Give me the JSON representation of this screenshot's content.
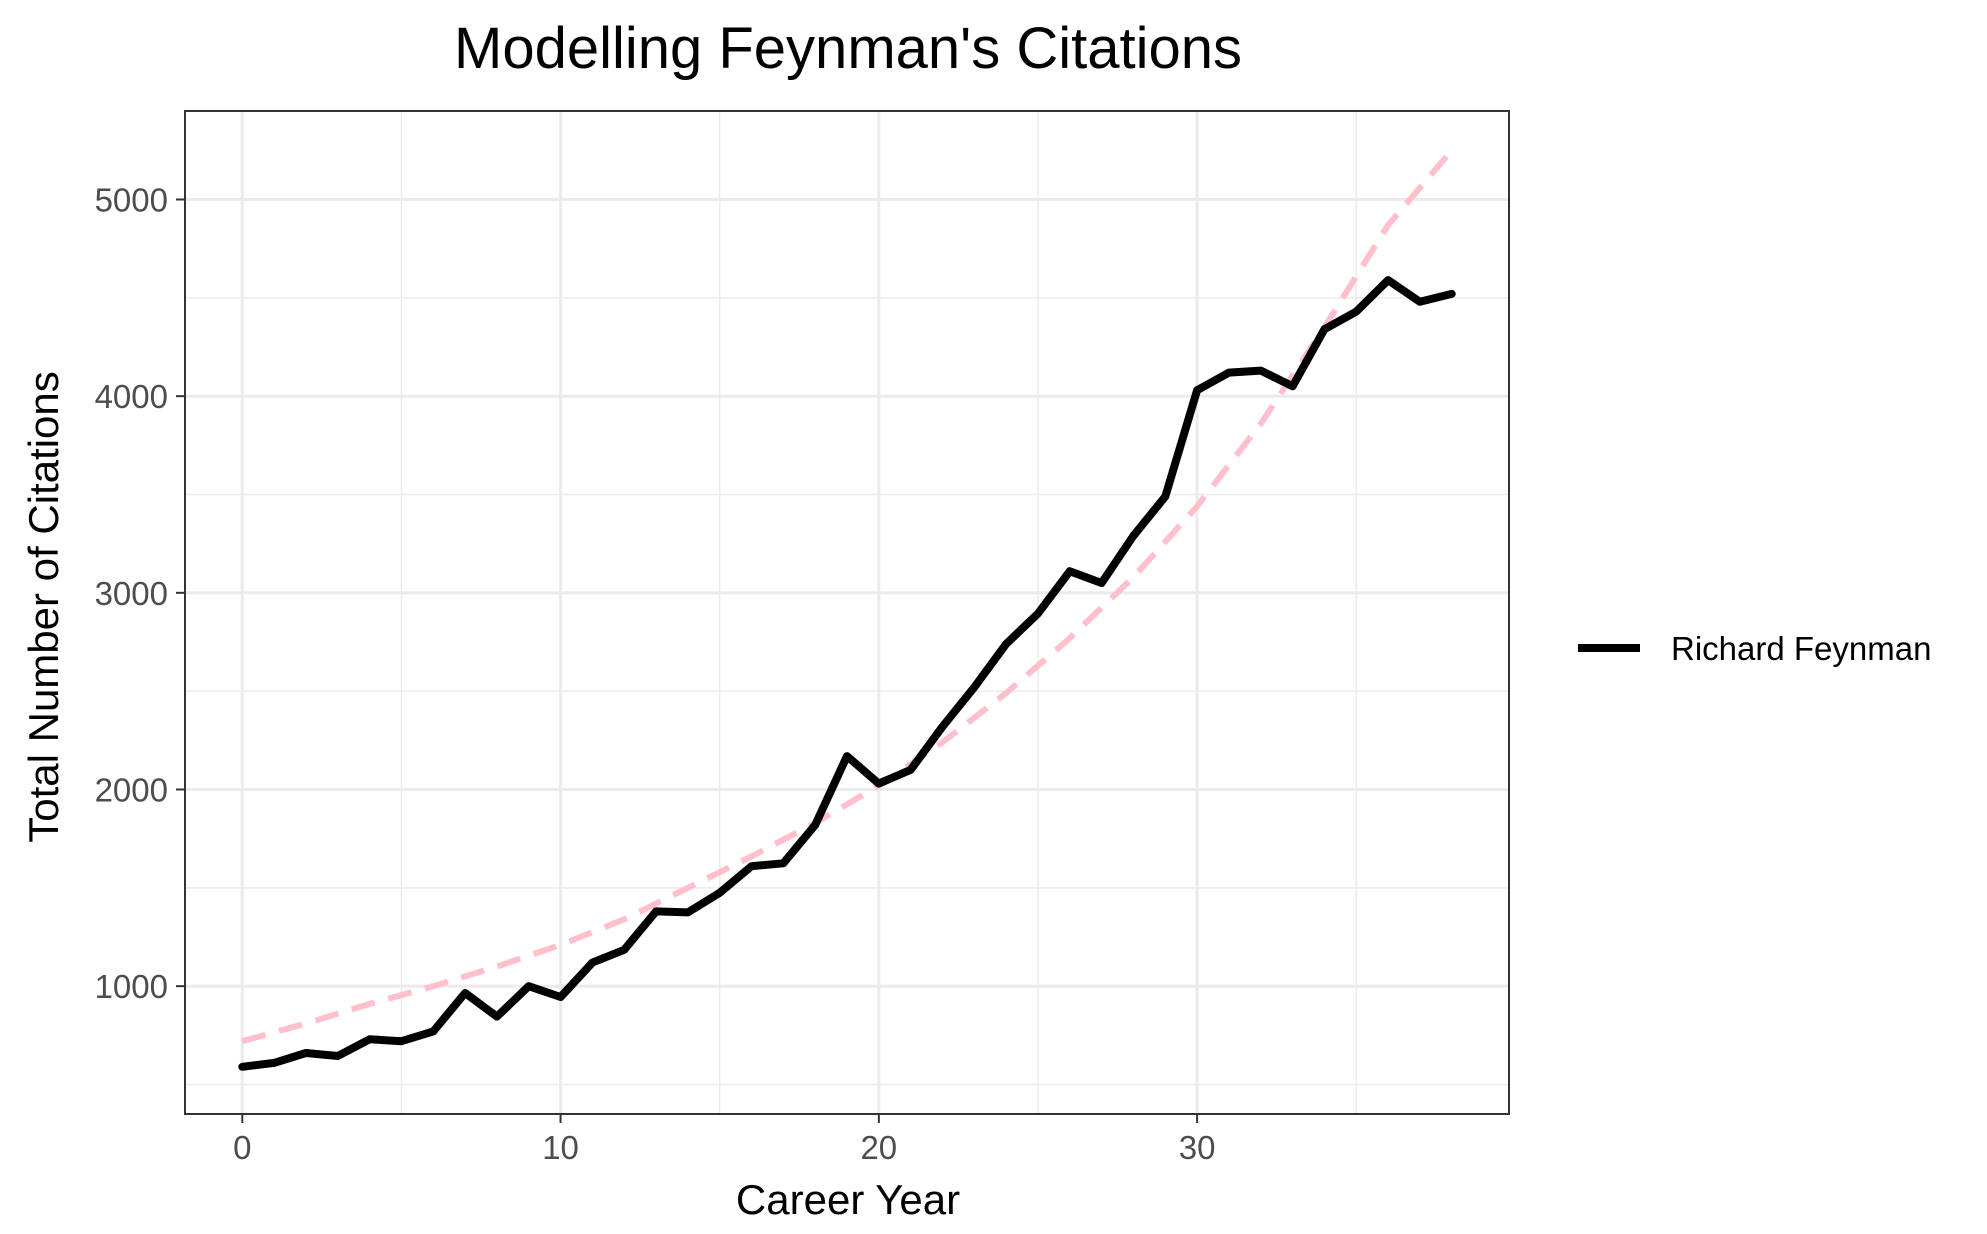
{
  "chart_data": {
    "type": "line",
    "title": "Modelling Feynman's Citations",
    "xlabel": "Career Year",
    "ylabel": "Total Number of Citations",
    "xlim": [
      -1.8,
      39.8
    ],
    "ylim": [
      350,
      5450
    ],
    "x_ticks": [
      0,
      10,
      20,
      30
    ],
    "y_ticks": [
      1000,
      2000,
      3000,
      4000,
      5000
    ],
    "grid": true,
    "legend_position": "right",
    "series": [
      {
        "name": "Richard Feynman",
        "color": "#000000",
        "style": "solid",
        "x": [
          0,
          1,
          2,
          3,
          4,
          5,
          6,
          7,
          8,
          9,
          10,
          11,
          12,
          13,
          14,
          15,
          16,
          17,
          18,
          19,
          20,
          21,
          22,
          23,
          24,
          25,
          26,
          27,
          28,
          29,
          30,
          31,
          32,
          33,
          34,
          35,
          36,
          37,
          38
        ],
        "y": [
          590,
          610,
          660,
          645,
          730,
          720,
          770,
          965,
          845,
          1000,
          945,
          1120,
          1185,
          1380,
          1375,
          1475,
          1610,
          1625,
          1820,
          2170,
          2030,
          2100,
          2320,
          2520,
          2740,
          2895,
          3110,
          3050,
          3290,
          3490,
          4030,
          4120,
          4130,
          4050,
          4340,
          4430,
          4590,
          4480,
          4520
        ]
      },
      {
        "color": "#ffc0cb",
        "style": "dashed",
        "x": [
          0,
          2,
          4,
          6,
          8,
          10,
          12,
          14,
          16,
          18,
          20,
          22,
          24,
          26,
          28,
          30,
          32,
          34,
          36,
          38
        ],
        "y": [
          720,
          810,
          910,
          1000,
          1100,
          1210,
          1340,
          1500,
          1660,
          1830,
          2020,
          2240,
          2490,
          2770,
          3080,
          3440,
          3860,
          4350,
          4870,
          5250
        ]
      }
    ]
  }
}
